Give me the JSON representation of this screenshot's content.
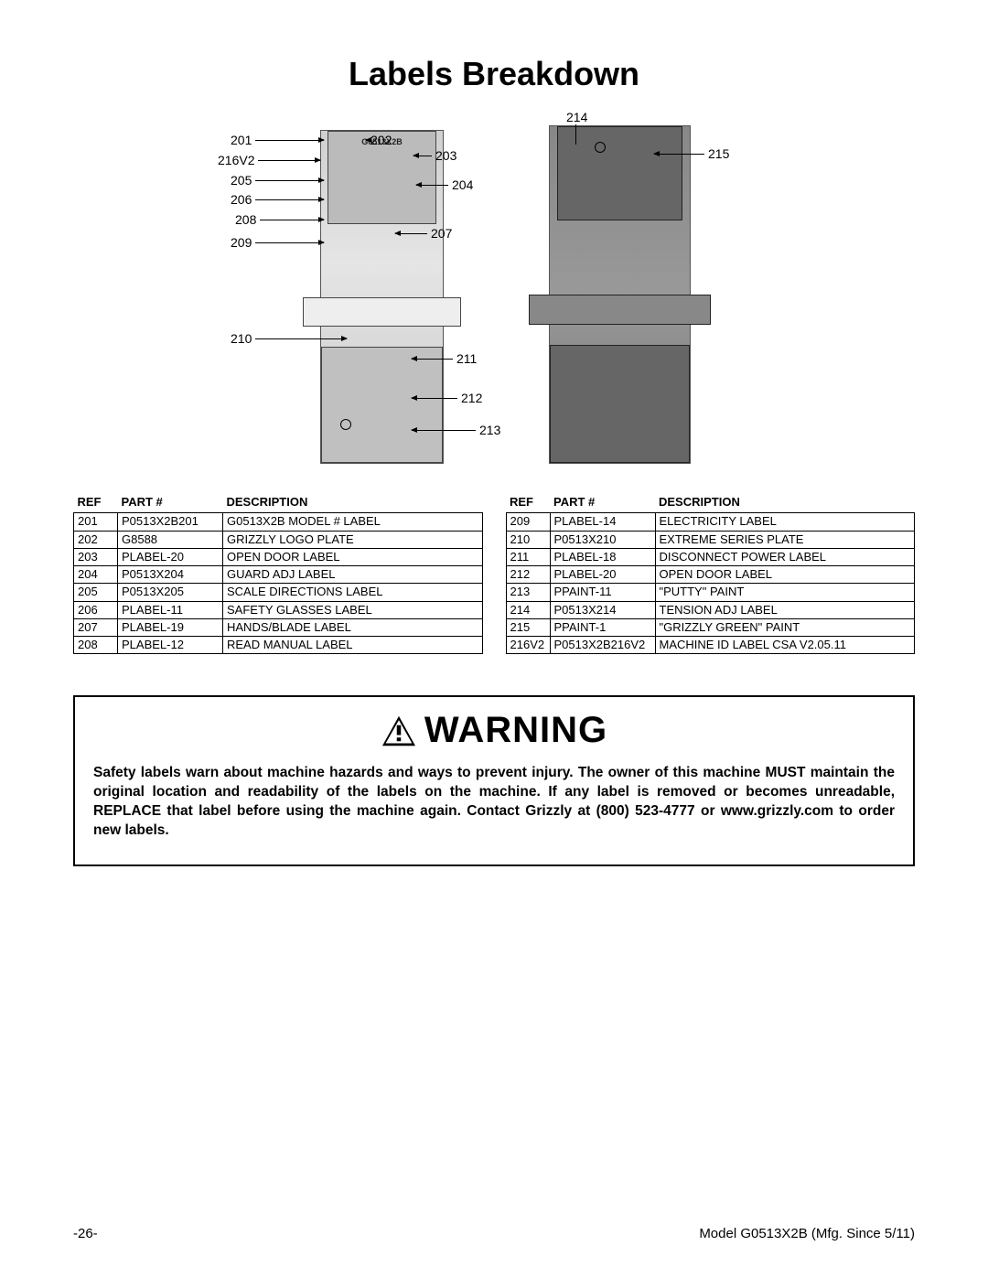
{
  "title": "Labels Breakdown",
  "diagram": {
    "model_label_text": "G0513X2B",
    "callouts_left_side": [
      "201",
      "216V2",
      "205",
      "206",
      "208",
      "209",
      "210"
    ],
    "callouts_top": [
      "202",
      "203",
      "204",
      "207",
      "211",
      "212",
      "213",
      "214",
      "215"
    ]
  },
  "table_headers": {
    "ref": "REF",
    "part": "PART #",
    "desc": "DESCRIPTION"
  },
  "parts_left": [
    {
      "ref": "201",
      "part": "P0513X2B201",
      "desc": "G0513X2B MODEL # LABEL"
    },
    {
      "ref": "202",
      "part": "G8588",
      "desc": "GRIZZLY LOGO PLATE"
    },
    {
      "ref": "203",
      "part": "PLABEL-20",
      "desc": "OPEN DOOR LABEL"
    },
    {
      "ref": "204",
      "part": "P0513X204",
      "desc": "GUARD ADJ LABEL"
    },
    {
      "ref": "205",
      "part": "P0513X205",
      "desc": "SCALE DIRECTIONS LABEL"
    },
    {
      "ref": "206",
      "part": "PLABEL-11",
      "desc": "SAFETY GLASSES LABEL"
    },
    {
      "ref": "207",
      "part": "PLABEL-19",
      "desc": "HANDS/BLADE LABEL"
    },
    {
      "ref": "208",
      "part": "PLABEL-12",
      "desc": "READ MANUAL LABEL"
    }
  ],
  "parts_right": [
    {
      "ref": "209",
      "part": "PLABEL-14",
      "desc": "ELECTRICITY LABEL"
    },
    {
      "ref": "210",
      "part": "P0513X210",
      "desc": "EXTREME SERIES PLATE"
    },
    {
      "ref": "211",
      "part": "PLABEL-18",
      "desc": "DISCONNECT POWER LABEL"
    },
    {
      "ref": "212",
      "part": "PLABEL-20",
      "desc": "OPEN DOOR LABEL"
    },
    {
      "ref": "213",
      "part": "PPAINT-11",
      "desc": "\"PUTTY\"  PAINT"
    },
    {
      "ref": "214",
      "part": "P0513X214",
      "desc": "TENSION ADJ LABEL"
    },
    {
      "ref": "215",
      "part": "PPAINT-1",
      "desc": "\"GRIZZLY GREEN\" PAINT"
    },
    {
      "ref": "216V2",
      "part": "P0513X2B216V2",
      "desc": "MACHINE ID LABEL CSA V2.05.11"
    }
  ],
  "warning": {
    "heading": "WARNING",
    "text": "Safety labels warn about machine hazards and ways to prevent injury. The owner of this machine MUST maintain the original location and readability of the labels on the machine. If any label is removed or becomes unreadable, REPLACE that label before using the machine again. Contact Grizzly at (800) 523-4777 or www.grizzly.com to order new labels."
  },
  "footer": {
    "page_number": "-26-",
    "model_line": "Model G0513X2B (Mfg. Since 5/11)"
  }
}
